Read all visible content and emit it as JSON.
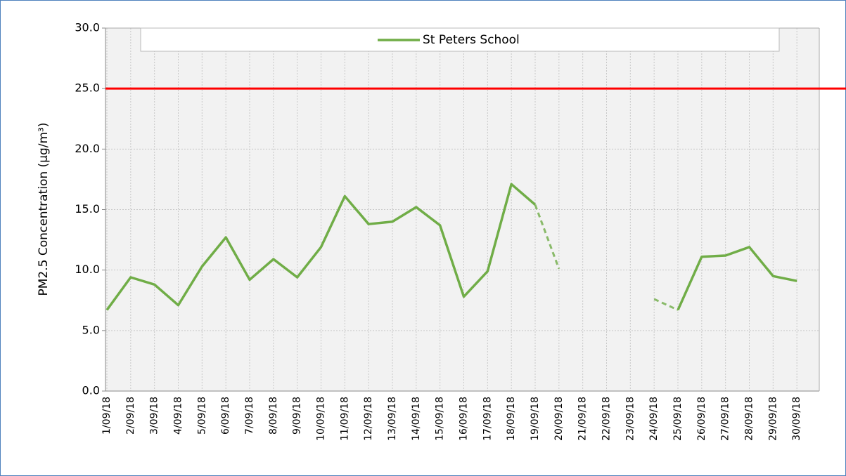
{
  "chart_data": {
    "type": "line",
    "categories": [
      "1/09/18",
      "2/09/18",
      "3/09/18",
      "4/09/18",
      "5/09/18",
      "6/09/18",
      "7/09/18",
      "8/09/18",
      "9/09/18",
      "10/09/18",
      "11/09/18",
      "12/09/18",
      "13/09/18",
      "14/09/18",
      "15/09/18",
      "16/09/18",
      "17/09/18",
      "18/09/18",
      "19/09/18",
      "20/09/18",
      "21/09/18",
      "22/09/18",
      "23/09/18",
      "24/09/18",
      "25/09/18",
      "26/09/18",
      "27/09/18",
      "28/09/18",
      "29/09/18",
      "30/09/18"
    ],
    "series": [
      {
        "name": "St Peters School",
        "color": "#70ad47",
        "values": [
          6.7,
          9.4,
          8.8,
          7.1,
          10.3,
          12.7,
          9.2,
          10.9,
          9.4,
          11.9,
          16.1,
          13.8,
          14.0,
          15.2,
          13.7,
          7.8,
          9.9,
          17.1,
          15.4,
          10.1,
          null,
          null,
          null,
          7.6,
          6.7,
          11.1,
          11.2,
          11.9,
          9.5,
          9.1
        ],
        "dashed_segments": [
          [
            18,
            19
          ],
          [
            23,
            24
          ]
        ]
      }
    ],
    "y_axis_label": "PM2.5 Concentration (µg/m³)",
    "ylim": [
      0,
      30
    ],
    "yticks": [
      {
        "value": 0,
        "label": "0.0"
      },
      {
        "value": 5,
        "label": "5.0"
      },
      {
        "value": 10,
        "label": "10.0"
      },
      {
        "value": 15,
        "label": "15.0"
      },
      {
        "value": 20,
        "label": "20.0"
      },
      {
        "value": 25,
        "label": "25.0"
      },
      {
        "value": 30,
        "label": "30.0"
      }
    ],
    "threshold": {
      "value": 25,
      "color": "#ff0000"
    },
    "grid": true,
    "legend": "top"
  }
}
